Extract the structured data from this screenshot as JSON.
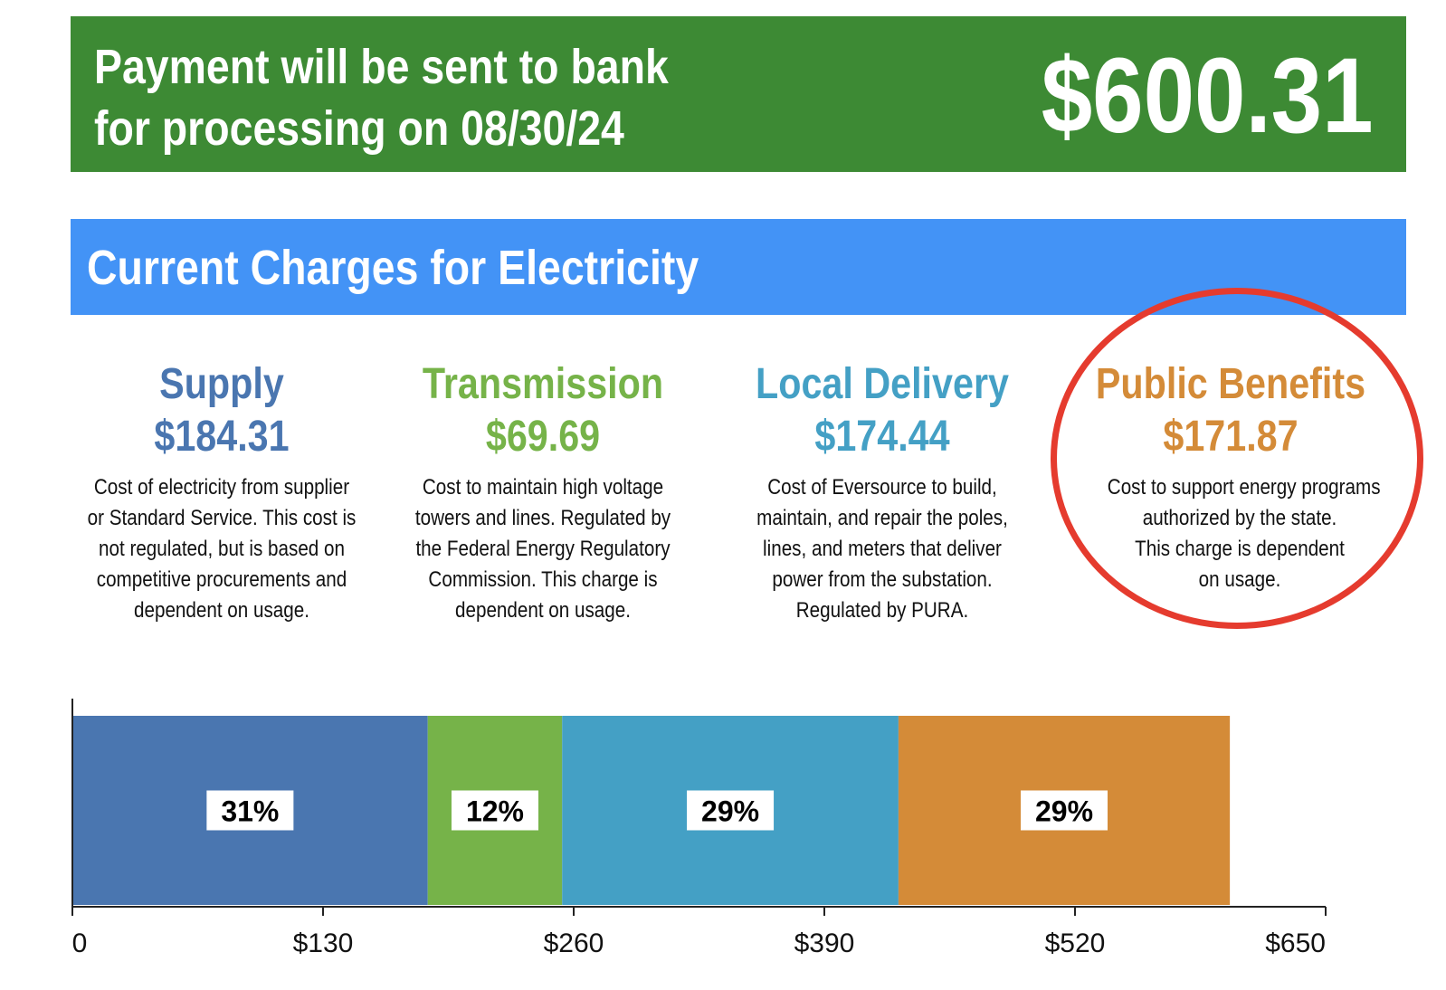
{
  "payment": {
    "line1": "Payment will be sent to bank",
    "line2": "for processing on 08/30/24",
    "amount": "$600.31",
    "color": "#3d8a34"
  },
  "charges_header": {
    "title": "Current Charges for Electricity",
    "color": "#4393f6"
  },
  "categories": [
    {
      "name": "Supply",
      "amount": "$184.31",
      "color": "#4a76b0",
      "description": [
        "Cost of electricity from supplier",
        "or Standard Service. This cost is",
        "not regulated, but is based on",
        "competitive procurements and",
        "dependent on usage."
      ]
    },
    {
      "name": "Transmission",
      "amount": "$69.69",
      "color": "#76b349",
      "description": [
        "Cost to maintain high voltage",
        "towers and lines. Regulated by",
        "the Federal Energy Regulatory",
        "Commission. This charge is",
        "dependent on usage."
      ]
    },
    {
      "name": "Local Delivery",
      "amount": "$174.44",
      "color": "#44a0c5",
      "description": [
        "Cost of Eversource to build,",
        "maintain, and repair the poles,",
        "lines, and meters that deliver",
        "power from the substation.",
        "Regulated by PURA."
      ]
    },
    {
      "name": "Public Benefits",
      "amount": "$171.87",
      "color": "#d48b38",
      "highlighted": true,
      "description": [
        "Cost to support energy programs",
        "authorized by the state.",
        "This charge is dependent",
        "on usage."
      ]
    }
  ],
  "chart_data": {
    "type": "bar",
    "orientation": "horizontal",
    "stacked": true,
    "xlim": [
      0,
      650
    ],
    "ticks": [
      0,
      130,
      260,
      390,
      520,
      650
    ],
    "tick_labels": [
      "0",
      "$130",
      "$260",
      "$390",
      "$520",
      "$650"
    ],
    "grid": false,
    "series": [
      {
        "name": "Supply",
        "value": 184.31,
        "label": "31%",
        "color": "#4a76b0"
      },
      {
        "name": "Transmission",
        "value": 69.69,
        "label": "12%",
        "color": "#76b349"
      },
      {
        "name": "Local Delivery",
        "value": 174.44,
        "label": "29%",
        "color": "#44a0c5"
      },
      {
        "name": "Public Benefits",
        "value": 171.87,
        "label": "29%",
        "color": "#d48b38"
      }
    ]
  }
}
